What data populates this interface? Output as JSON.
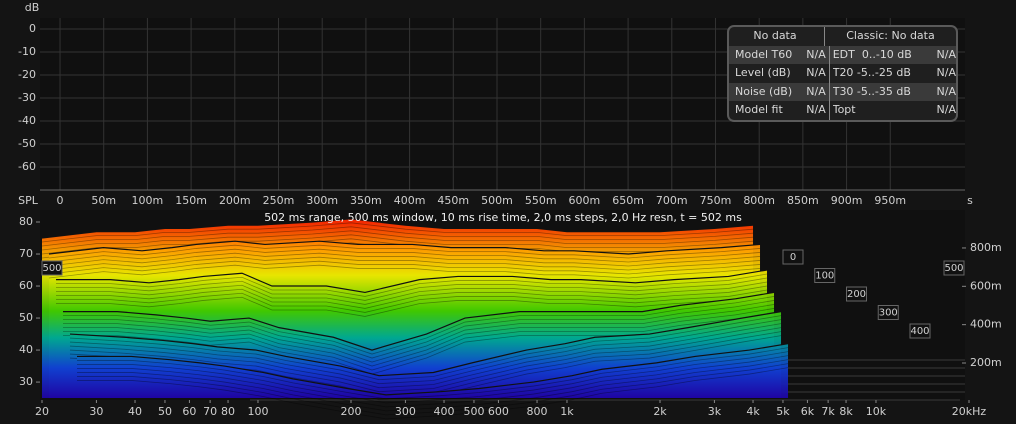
{
  "chart_data": [
    {
      "type": "line",
      "y_label": "dB",
      "x_unit": "s",
      "ylim": [
        -70,
        4.8
      ],
      "yticks": [
        0,
        -10,
        -20,
        -30,
        -40,
        -50,
        -60
      ],
      "xlim": [
        -0.0229,
        1.0355
      ],
      "xticks": [
        0,
        {
          "value": 0.05,
          "label": "50m"
        },
        {
          "value": 0.1,
          "label": "100m"
        },
        {
          "value": 0.15,
          "label": "150m"
        },
        {
          "value": 0.2,
          "label": "200m"
        },
        {
          "value": 0.25,
          "label": "250m"
        },
        {
          "value": 0.3,
          "label": "300m"
        },
        {
          "value": 0.35,
          "label": "350m"
        },
        {
          "value": 0.4,
          "label": "400m"
        },
        {
          "value": 0.45,
          "label": "450m"
        },
        {
          "value": 0.5,
          "label": "500m"
        },
        {
          "value": 0.55,
          "label": "550m"
        },
        {
          "value": 0.6,
          "label": "600m"
        },
        {
          "value": 0.65,
          "label": "650m"
        },
        {
          "value": 0.7,
          "label": "700m"
        },
        {
          "value": 0.75,
          "label": "750m"
        },
        {
          "value": 0.8,
          "label": "800m"
        },
        {
          "value": 0.85,
          "label": "850m"
        },
        {
          "value": 0.9,
          "label": "900m"
        },
        {
          "value": 0.95,
          "label": "950m"
        }
      ],
      "grid": true
    },
    {
      "type": "waterfall",
      "y_label": "SPL",
      "annotation": "502 ms range, 500 ms window, 10 ms rise time, 2,0 ms steps,  2,0 Hz resn, t = 502 ms",
      "log_x": true,
      "xlim": [
        20,
        20000
      ],
      "xticks": [
        20,
        30,
        40,
        50,
        60,
        70,
        80,
        100,
        200,
        300,
        400,
        500,
        600,
        800,
        {
          "value": 1000,
          "label": "1k"
        },
        {
          "value": 2000,
          "label": "2k"
        },
        {
          "value": 3000,
          "label": "3k"
        },
        {
          "value": 4000,
          "label": "4k"
        },
        {
          "value": 5000,
          "label": "5k"
        },
        {
          "value": 6000,
          "label": "6k"
        },
        {
          "value": 7000,
          "label": "7k"
        },
        {
          "value": 8000,
          "label": "8k"
        },
        {
          "value": 10000,
          "label": "10k"
        },
        {
          "value": 20000,
          "label": "20kHz"
        }
      ],
      "ylim": [
        24.4,
        83.75
      ],
      "yticks": [
        80,
        70,
        60,
        50,
        40,
        30
      ],
      "y2lim": [
        0.007,
        0.998
      ],
      "y2ticks": [
        {
          "value": 0.8,
          "label": "800m"
        },
        {
          "value": 0.6,
          "label": "600m"
        },
        {
          "value": 0.4,
          "label": "400m"
        },
        {
          "value": 0.2,
          "label": "200m"
        }
      ],
      "depth_ticks": [
        0,
        100,
        200,
        300,
        400,
        500
      ],
      "x": [
        20,
        30,
        40,
        50,
        60,
        80,
        100,
        150,
        200,
        300,
        400,
        600,
        800,
        1000,
        1500,
        2000,
        3000,
        4000
      ],
      "series": [
        {
          "t": 0,
          "values": [
            75,
            77,
            77,
            78,
            78,
            79,
            79,
            80,
            81,
            79,
            78,
            78,
            78,
            77,
            77,
            77,
            78,
            79
          ]
        },
        {
          "t": 100,
          "values": [
            70,
            72,
            71,
            72,
            73,
            74,
            73,
            74,
            73,
            73,
            72,
            72,
            71,
            71,
            70,
            71,
            72,
            73
          ]
        },
        {
          "t": 200,
          "values": [
            62,
            62,
            61,
            62,
            63,
            64,
            60,
            60,
            58,
            62,
            63,
            63,
            62,
            62,
            61,
            62,
            63,
            65
          ]
        },
        {
          "t": 300,
          "values": [
            52,
            52,
            51,
            50,
            49,
            50,
            47,
            44,
            40,
            45,
            50,
            52,
            52,
            52,
            52,
            54,
            56,
            58
          ]
        },
        {
          "t": 400,
          "values": [
            45,
            44,
            43,
            42,
            41,
            40,
            38,
            35,
            32,
            33,
            36,
            40,
            42,
            44,
            45,
            47,
            50,
            52
          ]
        },
        {
          "t": 500,
          "values": [
            38,
            38,
            37,
            36,
            35,
            33,
            31,
            28,
            26,
            27,
            28,
            30,
            32,
            34,
            36,
            38,
            40,
            42
          ]
        }
      ]
    }
  ],
  "stats_table": {
    "header": [
      "No data",
      "Classic: No data"
    ],
    "rows": [
      [
        "Model T60",
        "N/A",
        "EDT  0..-10 dB",
        "N/A"
      ],
      [
        "Level (dB)",
        "N/A",
        "T20 -5..-25 dB",
        "N/A"
      ],
      [
        "Noise (dB)",
        "N/A",
        "T30 -5..-35 dB",
        "N/A"
      ],
      [
        "Model fit",
        "N/A",
        "Topt",
        "N/A"
      ]
    ]
  }
}
